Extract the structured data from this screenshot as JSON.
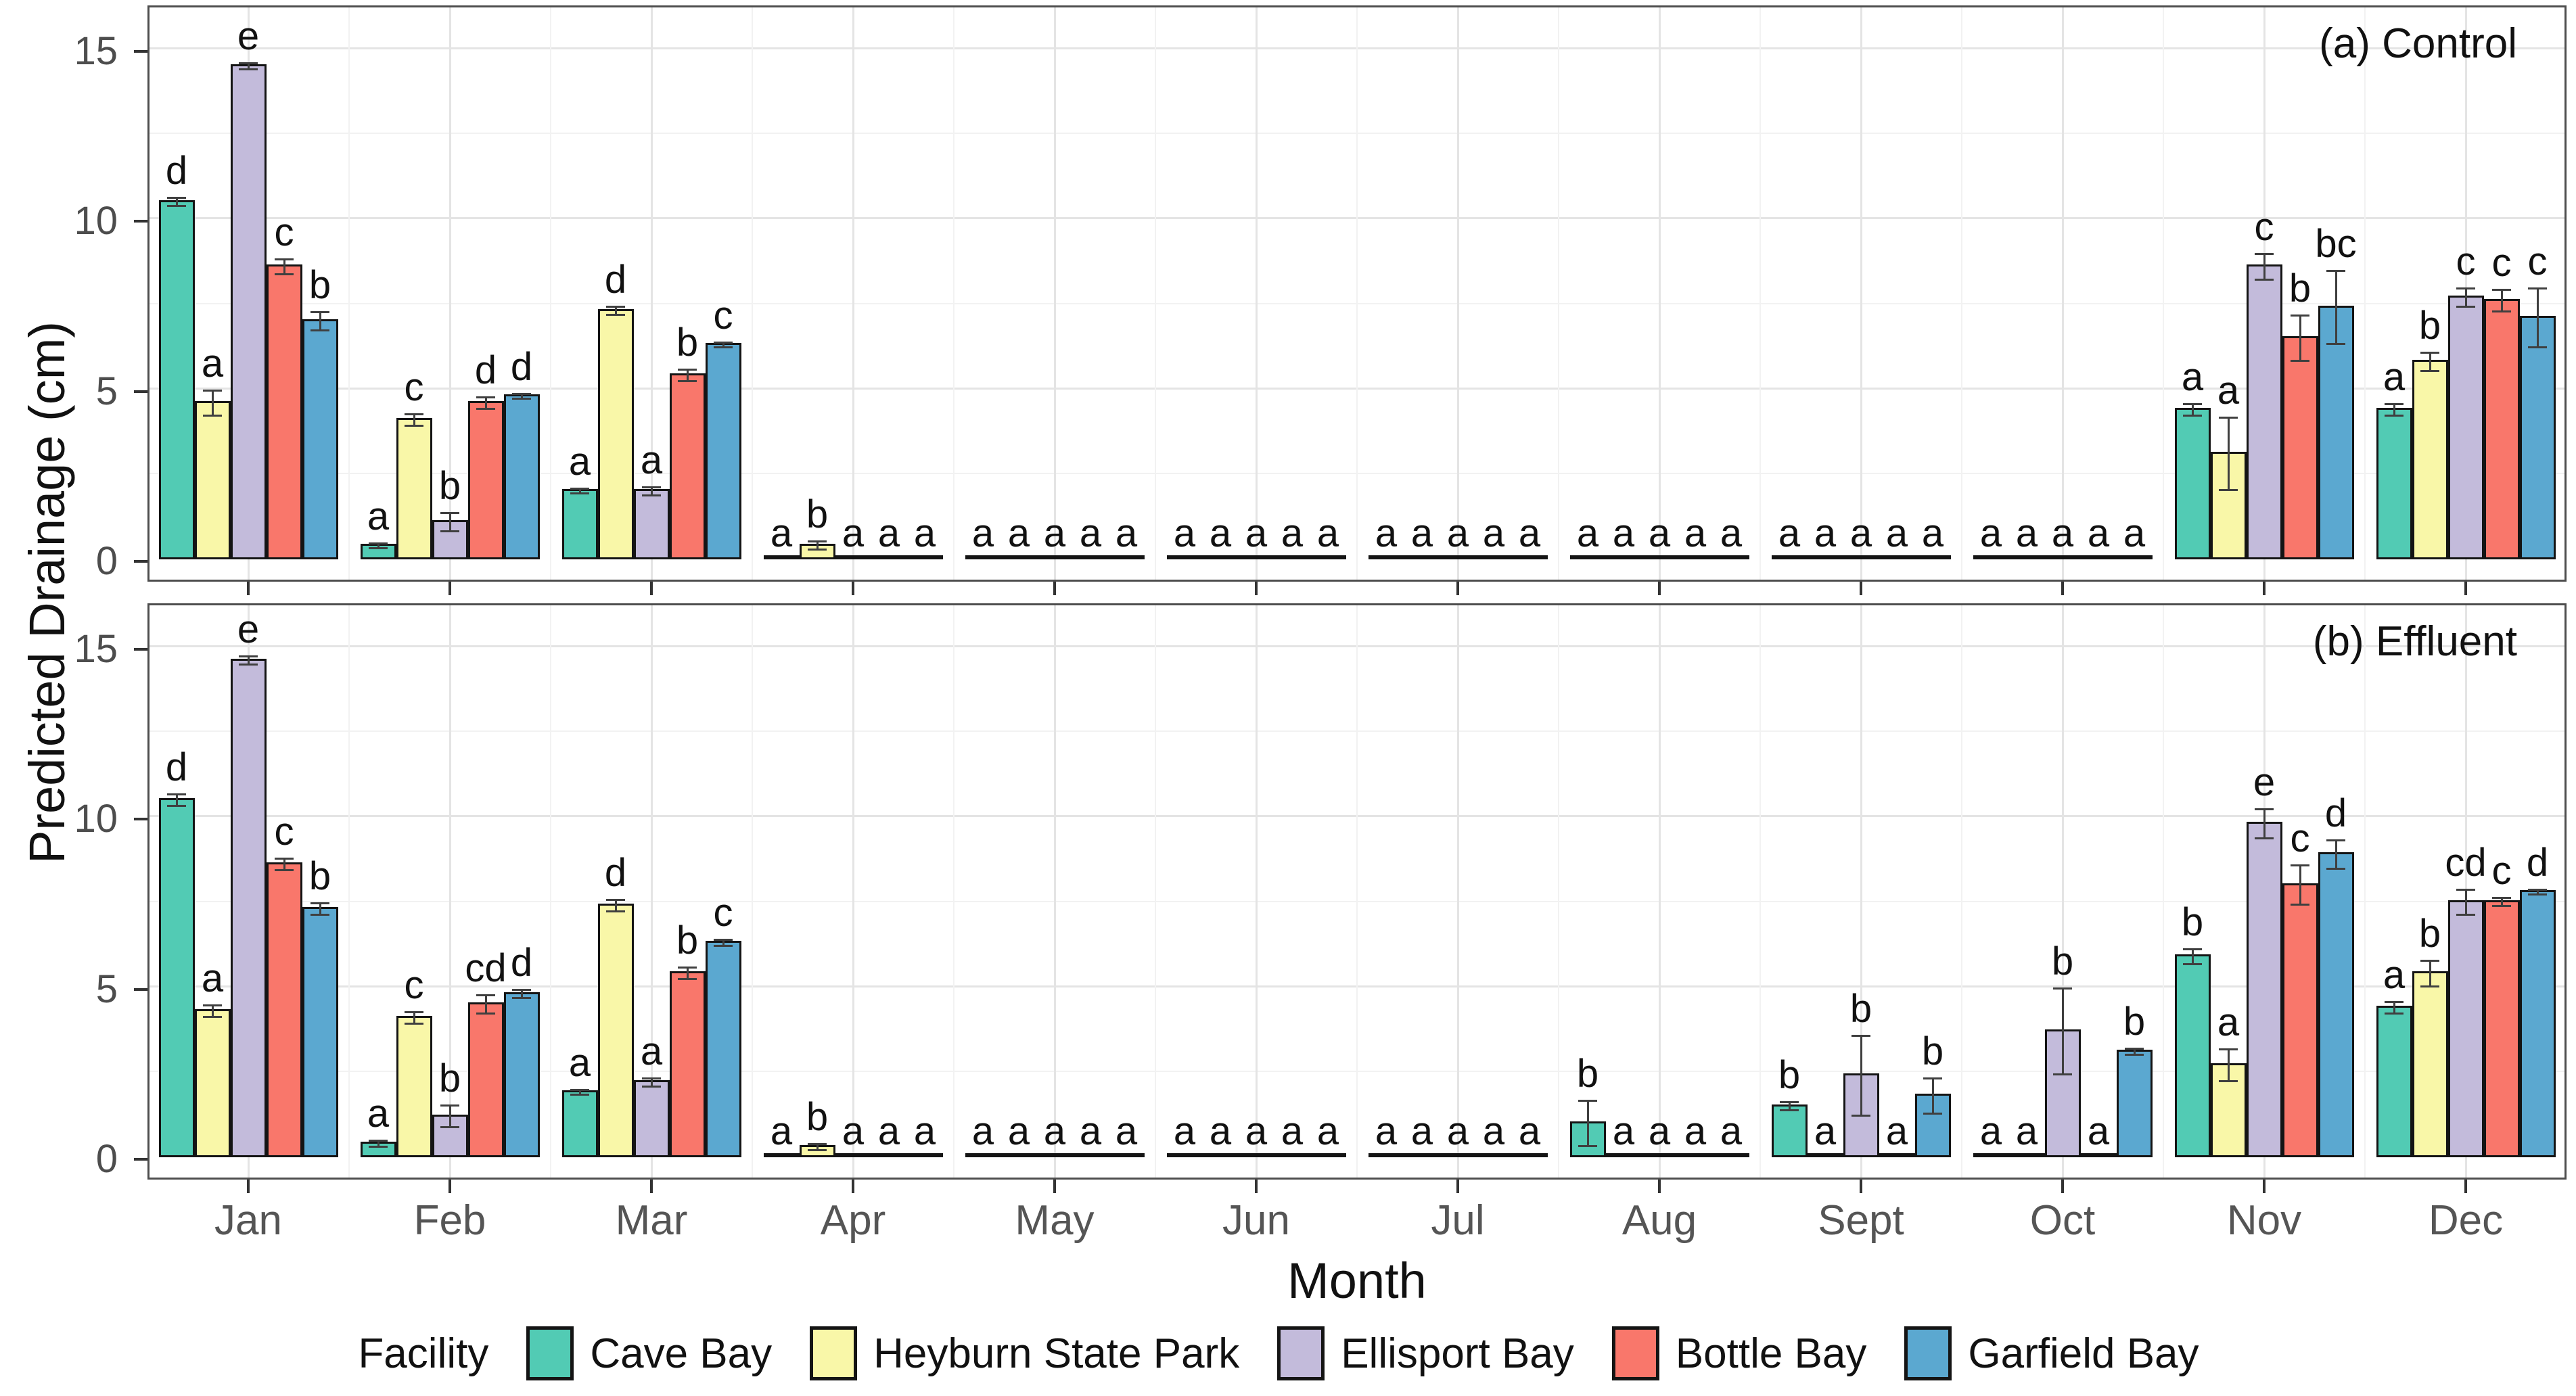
{
  "chart_data": {
    "type": "bar",
    "title": "",
    "xlabel": "Month",
    "ylabel": "Predicted Drainage (cm)",
    "ylim": [
      0,
      16.3
    ],
    "y_ticks": [
      0,
      5,
      10,
      15
    ],
    "grid": true,
    "legend_title": "Facility",
    "legend_position": "bottom",
    "categories": [
      "Jan",
      "Feb",
      "Mar",
      "Apr",
      "May",
      "Jun",
      "Jul",
      "Aug",
      "Sept",
      "Oct",
      "Nov",
      "Dec"
    ],
    "facilities": [
      {
        "name": "Cave Bay",
        "color": "#52CBB4"
      },
      {
        "name": "Heyburn State Park",
        "color": "#F9F7A8"
      },
      {
        "name": "Ellisport Bay",
        "color": "#C3BBDB"
      },
      {
        "name": "Bottle Bay",
        "color": "#F9776B"
      },
      {
        "name": "Garfield Bay",
        "color": "#5BA8D0"
      }
    ],
    "panels": [
      {
        "label": "(a) Control",
        "series": [
          {
            "name": "Cave Bay",
            "values": [
              10.5,
              0.4,
              2.0,
              0,
              0,
              0,
              0,
              0,
              0,
              0,
              4.4,
              4.4
            ],
            "errors": [
              0.15,
              0.1,
              0.1,
              0,
              0,
              0,
              0,
              0,
              0,
              0,
              0.2,
              0.2
            ],
            "letters": [
              "d",
              "a",
              "a",
              "a",
              "a",
              "a",
              "a",
              "a",
              "a",
              "a",
              "a",
              "a"
            ]
          },
          {
            "name": "Heyburn State Park",
            "values": [
              4.6,
              4.1,
              7.3,
              0.4,
              0,
              0,
              0,
              0,
              0,
              0,
              3.1,
              5.8
            ],
            "errors": [
              0.4,
              0.2,
              0.15,
              0.15,
              0,
              0,
              0,
              0,
              0,
              0,
              1.1,
              0.3
            ],
            "letters": [
              "a",
              "c",
              "d",
              "b",
              "a",
              "a",
              "a",
              "a",
              "a",
              "a",
              "a",
              "b"
            ]
          },
          {
            "name": "Ellisport Bay",
            "values": [
              14.5,
              1.1,
              2.0,
              0,
              0,
              0,
              0,
              0,
              0,
              0,
              8.6,
              7.7
            ],
            "errors": [
              0.12,
              0.3,
              0.15,
              0,
              0,
              0,
              0,
              0,
              0,
              0,
              0.4,
              0.3
            ],
            "letters": [
              "e",
              "b",
              "a",
              "a",
              "a",
              "a",
              "a",
              "a",
              "a",
              "a",
              "c",
              "c"
            ]
          },
          {
            "name": "Bottle Bay",
            "values": [
              8.6,
              4.6,
              5.4,
              0,
              0,
              0,
              0,
              0,
              0,
              0,
              6.5,
              7.6
            ],
            "errors": [
              0.25,
              0.2,
              0.2,
              0,
              0,
              0,
              0,
              0,
              0,
              0,
              0.7,
              0.35
            ],
            "letters": [
              "c",
              "d",
              "b",
              "a",
              "a",
              "a",
              "a",
              "a",
              "a",
              "a",
              "b",
              "c"
            ]
          },
          {
            "name": "Garfield Bay",
            "values": [
              7.0,
              4.8,
              6.3,
              0,
              0,
              0,
              0,
              0,
              0,
              0,
              7.4,
              7.1
            ],
            "errors": [
              0.3,
              0.1,
              0.1,
              0,
              0,
              0,
              0,
              0,
              0,
              0,
              1.1,
              0.9
            ],
            "letters": [
              "b",
              "d",
              "c",
              "a",
              "a",
              "a",
              "a",
              "a",
              "a",
              "a",
              "bc",
              "c"
            ]
          }
        ]
      },
      {
        "label": "(b) Effluent",
        "series": [
          {
            "name": "Cave Bay",
            "values": [
              10.5,
              0.4,
              1.9,
              0,
              0,
              0,
              0,
              1.0,
              1.5,
              0,
              5.9,
              4.4
            ],
            "errors": [
              0.2,
              0.12,
              0.1,
              0,
              0,
              0,
              0,
              0.7,
              0.15,
              0,
              0.25,
              0.2
            ],
            "letters": [
              "d",
              "a",
              "a",
              "a",
              "a",
              "a",
              "a",
              "b",
              "b",
              "a",
              "b",
              "a"
            ]
          },
          {
            "name": "Heyburn State Park",
            "values": [
              4.3,
              4.1,
              7.4,
              0.3,
              0,
              0,
              0,
              0,
              0,
              0,
              2.7,
              5.4
            ],
            "errors": [
              0.2,
              0.2,
              0.2,
              0.12,
              0,
              0,
              0,
              0,
              0,
              0,
              0.5,
              0.4
            ],
            "letters": [
              "a",
              "c",
              "d",
              "b",
              "a",
              "a",
              "a",
              "a",
              "a",
              "a",
              "a",
              "b"
            ]
          },
          {
            "name": "Ellisport Bay",
            "values": [
              14.6,
              1.2,
              2.2,
              0,
              0,
              0,
              0,
              0,
              2.4,
              3.7,
              9.8,
              7.5
            ],
            "errors": [
              0.15,
              0.35,
              0.15,
              0,
              0,
              0,
              0,
              0,
              1.2,
              1.3,
              0.45,
              0.4
            ],
            "letters": [
              "e",
              "b",
              "a",
              "a",
              "a",
              "a",
              "a",
              "a",
              "b",
              "b",
              "e",
              "cd"
            ]
          },
          {
            "name": "Bottle Bay",
            "values": [
              8.6,
              4.5,
              5.4,
              0,
              0,
              0,
              0,
              0,
              0,
              0,
              8.0,
              7.5
            ],
            "errors": [
              0.2,
              0.3,
              0.2,
              0,
              0,
              0,
              0,
              0,
              0,
              0,
              0.6,
              0.15
            ],
            "letters": [
              "c",
              "cd",
              "b",
              "a",
              "a",
              "a",
              "a",
              "a",
              "a",
              "a",
              "c",
              "c"
            ]
          },
          {
            "name": "Garfield Bay",
            "values": [
              7.3,
              4.8,
              6.3,
              0,
              0,
              0,
              0,
              0,
              1.8,
              3.1,
              8.9,
              7.8
            ],
            "errors": [
              0.2,
              0.15,
              0.12,
              0,
              0,
              0,
              0,
              0,
              0.55,
              0.12,
              0.45,
              0.1
            ],
            "letters": [
              "b",
              "d",
              "c",
              "a",
              "a",
              "a",
              "a",
              "a",
              "b",
              "b",
              "d",
              "d"
            ]
          }
        ]
      }
    ]
  }
}
